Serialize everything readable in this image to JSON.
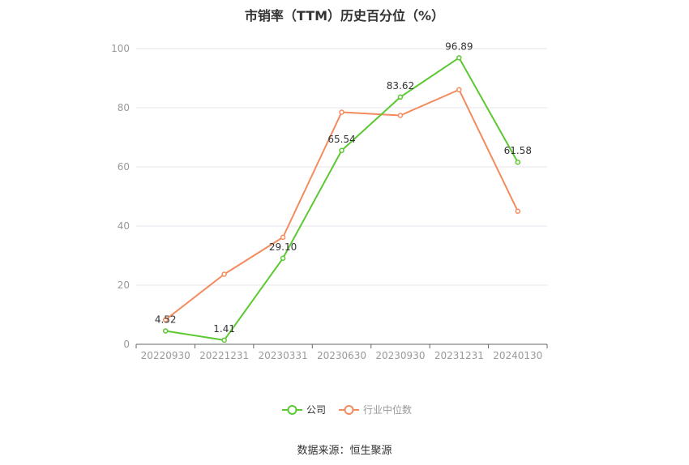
{
  "chart_data": {
    "type": "line",
    "title": "市销率（TTM）历史百分位（%）",
    "categories": [
      "20220930",
      "20221231",
      "20230331",
      "20230630",
      "20230930",
      "20231231",
      "20240130"
    ],
    "series": [
      {
        "name": "公司",
        "color": "#5cc832",
        "values": [
          4.52,
          1.41,
          29.1,
          65.54,
          83.62,
          96.89,
          61.58
        ],
        "labels": [
          "4.52",
          "1.41",
          "29.10",
          "65.54",
          "83.62",
          "96.89",
          "61.58"
        ]
      },
      {
        "name": "行业中位数",
        "color": "#f28c5e",
        "values": [
          8.3,
          23.7,
          36.2,
          78.5,
          77.4,
          86.1,
          45.0
        ]
      }
    ],
    "ylim": [
      0,
      100
    ],
    "yticks": [
      "0",
      "20",
      "40",
      "60",
      "80",
      "100"
    ],
    "grid": true,
    "legend_position": "bottom-center"
  },
  "source": "数据来源：恒生聚源"
}
